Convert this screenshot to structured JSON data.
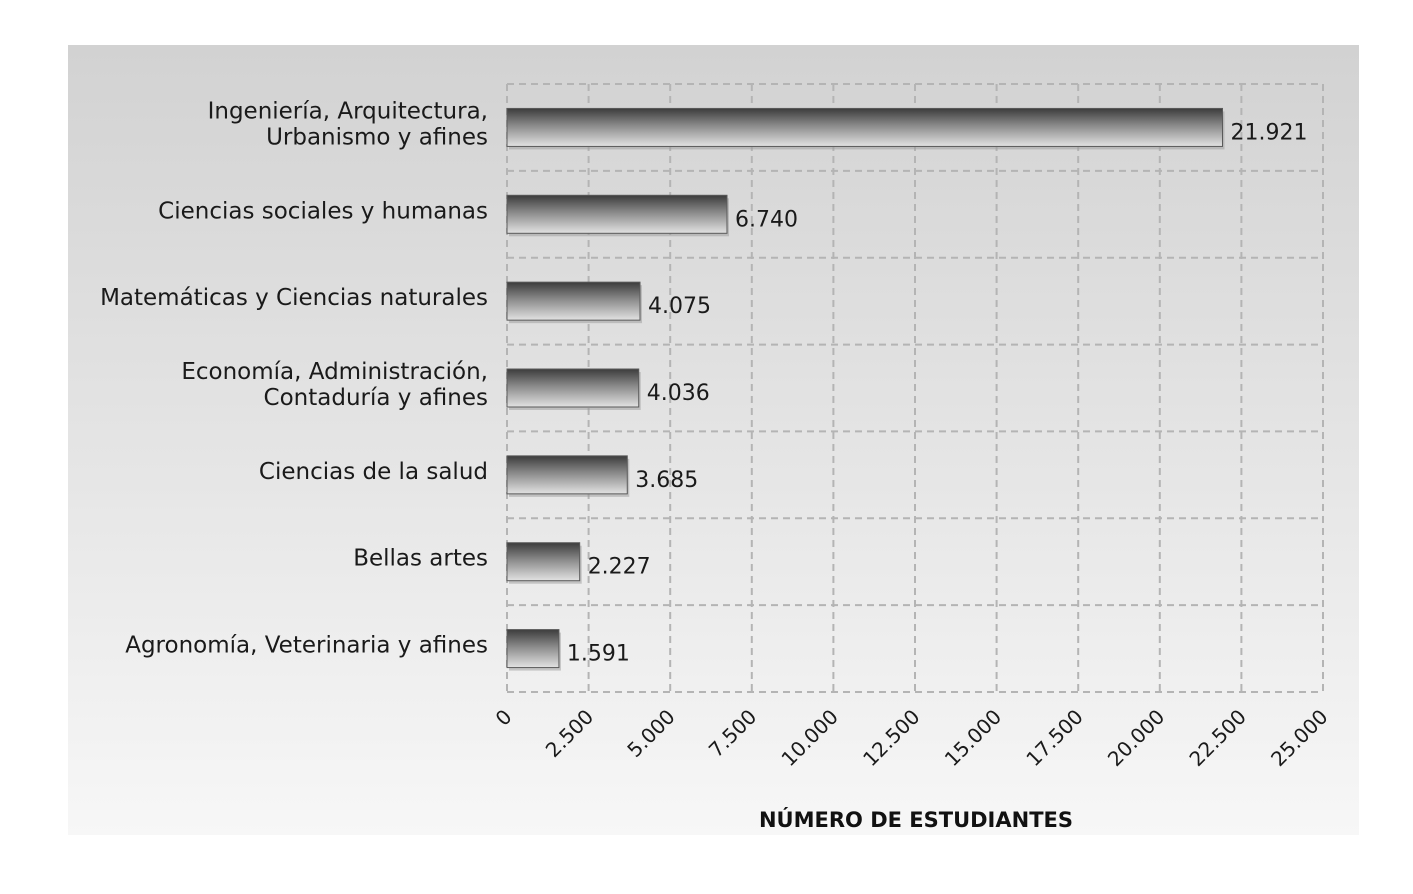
{
  "chart_data": {
    "type": "bar",
    "orientation": "horizontal",
    "categories": [
      [
        "Ingeniería, Arquitectura,",
        "Urbanismo y afines"
      ],
      [
        "Ciencias sociales y humanas"
      ],
      [
        "Matemáticas y Ciencias naturales"
      ],
      [
        "Economía, Administración,",
        "Contaduría y afines"
      ],
      [
        "Ciencias de la salud"
      ],
      [
        "Bellas artes"
      ],
      [
        "Agronomía, Veterinaria y afines"
      ]
    ],
    "values": [
      21921,
      6740,
      4075,
      4036,
      3685,
      2227,
      1591
    ],
    "value_labels": [
      "21.921",
      "6.740",
      "4.075",
      "4.036",
      "3.685",
      "2.227",
      "1.591"
    ],
    "xticks": [
      0,
      2500,
      5000,
      7500,
      10000,
      12500,
      15000,
      17500,
      20000,
      22500,
      25000
    ],
    "xtick_labels": [
      "0",
      "2.500",
      "5.000",
      "7.500",
      "10.000",
      "12.500",
      "15.000",
      "17.500",
      "20.000",
      "22.500",
      "25.000"
    ],
    "xlim": [
      0,
      25000
    ],
    "xlabel": "NÚMERO DE ESTUDIANTES",
    "ylabel": "",
    "title": "",
    "grid": true,
    "legend": "none",
    "colors": {
      "bar_dark": "#4a4a4a",
      "bar_light": "#d8d8d8",
      "grid": "#b4b4b4"
    }
  }
}
